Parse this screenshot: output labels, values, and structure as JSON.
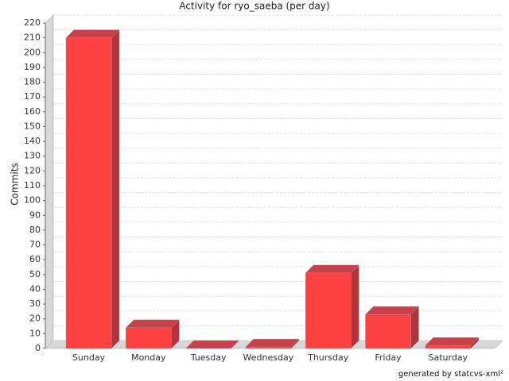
{
  "chart_data": {
    "type": "bar3d",
    "title": "Activity for ryo_saeba (per day)",
    "y_label": "Commits",
    "categories": [
      "Sunday",
      "Monday",
      "Tuesday",
      "Wednesday",
      "Thursday",
      "Friday",
      "Saturday"
    ],
    "values": [
      210,
      14,
      0,
      1,
      51,
      23,
      2
    ],
    "color": "#ff4040",
    "ylim": [
      0,
      220
    ],
    "yticks": [
      0,
      10,
      20,
      30,
      40,
      50,
      60,
      70,
      80,
      90,
      100,
      110,
      120,
      130,
      140,
      150,
      160,
      170,
      180,
      190,
      200,
      210,
      220
    ],
    "grid": true,
    "footer": "generated by statcvs-xml²"
  }
}
